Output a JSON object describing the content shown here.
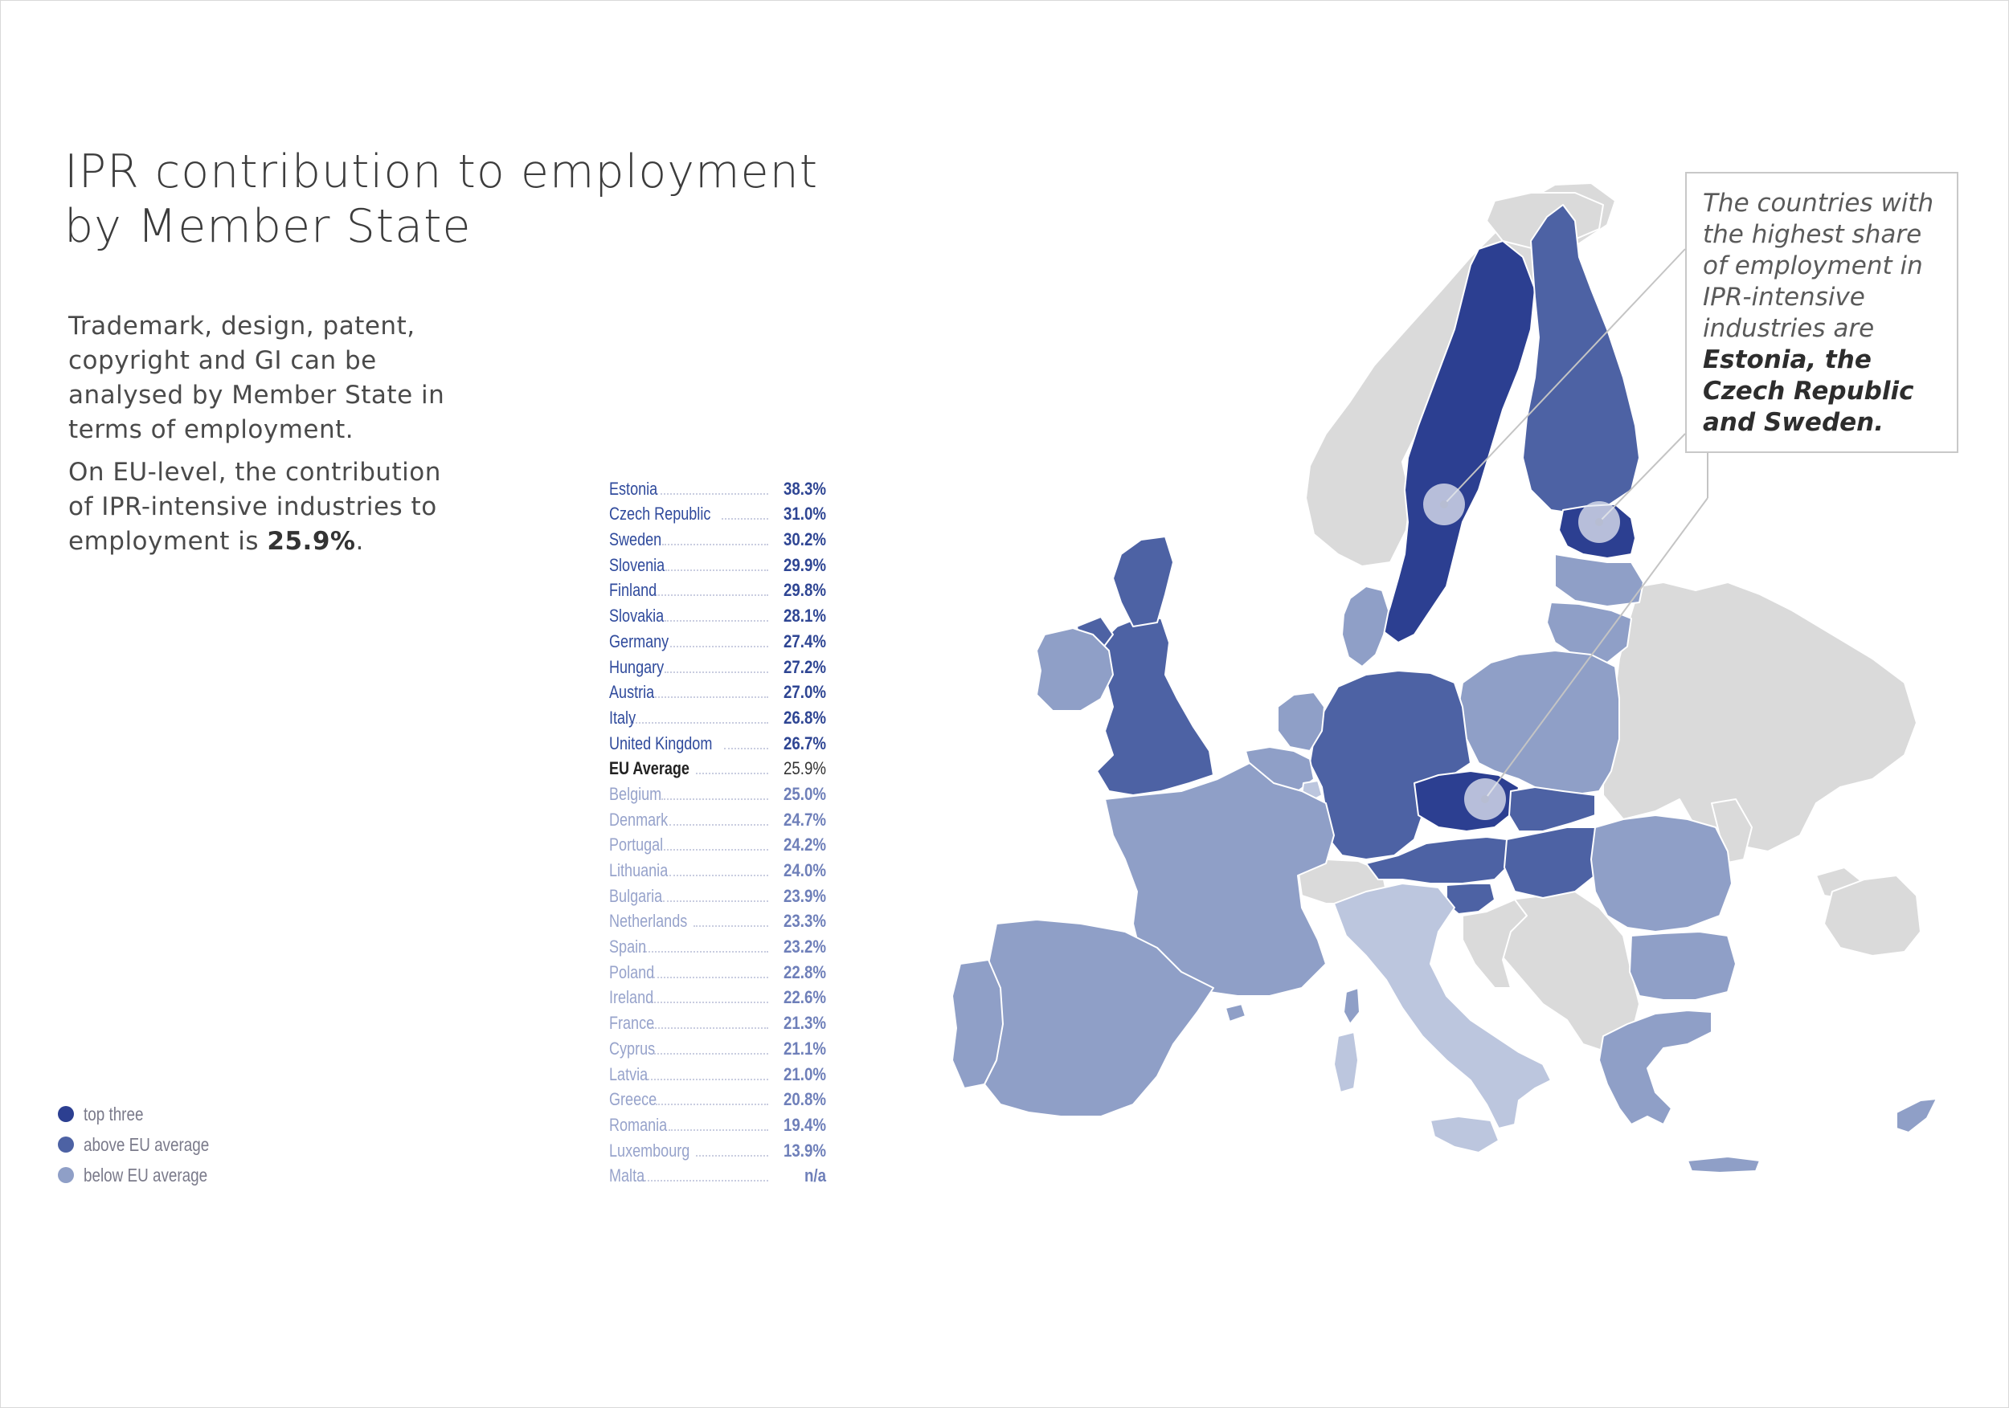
{
  "title": {
    "line1": "IPR contribution to employment",
    "line2": "by Member State"
  },
  "intro": {
    "p1": "Trademark, design, patent, copyright and GI can be analysed by Member State in terms of employment.",
    "p2_text": "On EU-level, the contribution of IPR-intensive industries to employment is ",
    "p2_value": "25.9%",
    "p2_end": "."
  },
  "callout": {
    "text": "The countries with the highest share of employment in IPR-intensive industries are",
    "highlight": "Estonia, the Czech Republic and Sweden."
  },
  "legend": [
    {
      "label": "top three",
      "color": "#2c3f91"
    },
    {
      "label": "above EU average",
      "color": "#4d62a4"
    },
    {
      "label": "below EU average",
      "color": "#8f9fc7"
    }
  ],
  "colors": {
    "top_three": "#2c3f91",
    "above_average": "#4d62a4",
    "below_average": "#8f9fc7",
    "light": "#bcc6de",
    "non_eu": "#dadada"
  },
  "ranking": [
    {
      "country": "Estonia",
      "value": "38.3%",
      "group": "top"
    },
    {
      "country": "Czech Republic",
      "value": "31.0%",
      "group": "top"
    },
    {
      "country": "Sweden",
      "value": "30.2%",
      "group": "top"
    },
    {
      "country": "Slovenia",
      "value": "29.9%",
      "group": "above"
    },
    {
      "country": "Finland",
      "value": "29.8%",
      "group": "above"
    },
    {
      "country": "Slovakia",
      "value": "28.1%",
      "group": "above"
    },
    {
      "country": "Germany",
      "value": "27.4%",
      "group": "above"
    },
    {
      "country": "Hungary",
      "value": "27.2%",
      "group": "above"
    },
    {
      "country": "Austria",
      "value": "27.0%",
      "group": "above"
    },
    {
      "country": "Italy",
      "value": "26.8%",
      "group": "above"
    },
    {
      "country": "United Kingdom",
      "value": "26.7%",
      "group": "above"
    },
    {
      "country": "EU Average",
      "value": "25.9%",
      "group": "avg"
    },
    {
      "country": "Belgium",
      "value": "25.0%",
      "group": "below"
    },
    {
      "country": "Denmark",
      "value": "24.7%",
      "group": "below"
    },
    {
      "country": "Portugal",
      "value": "24.2%",
      "group": "below"
    },
    {
      "country": "Lithuania",
      "value": "24.0%",
      "group": "below"
    },
    {
      "country": "Bulgaria",
      "value": "23.9%",
      "group": "below"
    },
    {
      "country": "Netherlands",
      "value": "23.3%",
      "group": "below"
    },
    {
      "country": "Spain",
      "value": "23.2%",
      "group": "below"
    },
    {
      "country": "Poland",
      "value": "22.8%",
      "group": "below"
    },
    {
      "country": "Ireland",
      "value": "22.6%",
      "group": "below"
    },
    {
      "country": "France",
      "value": "21.3%",
      "group": "below"
    },
    {
      "country": "Cyprus",
      "value": "21.1%",
      "group": "below"
    },
    {
      "country": "Latvia",
      "value": "21.0%",
      "group": "below"
    },
    {
      "country": "Greece",
      "value": "20.8%",
      "group": "below"
    },
    {
      "country": "Romania",
      "value": "19.4%",
      "group": "below"
    },
    {
      "country": "Luxembourg",
      "value": "13.9%",
      "group": "below"
    },
    {
      "country": "Malta",
      "value": "n/a",
      "group": "below"
    }
  ]
}
